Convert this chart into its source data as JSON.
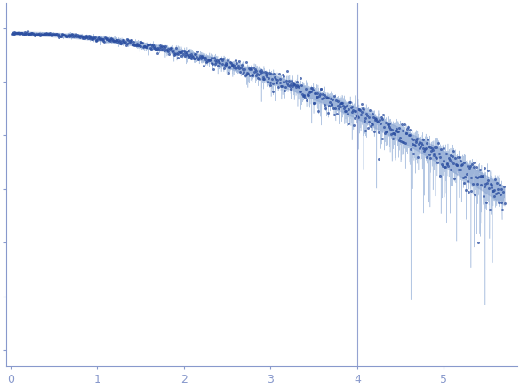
{
  "title": "",
  "xlabel": "",
  "ylabel": "",
  "xlim": [
    -0.05,
    5.85
  ],
  "dot_color": "#2B4EA0",
  "band_color": "#AABBDD",
  "line_color": "#7799CC",
  "vline_x": 4.0,
  "vline_color": "#8899CC",
  "axis_color": "#8899CC",
  "tick_color": "#8899CC",
  "background_color": "#FFFFFF",
  "xticks": [
    0,
    1,
    2,
    3,
    4,
    5
  ],
  "figsize": [
    5.85,
    4.37
  ],
  "dpi": 100
}
